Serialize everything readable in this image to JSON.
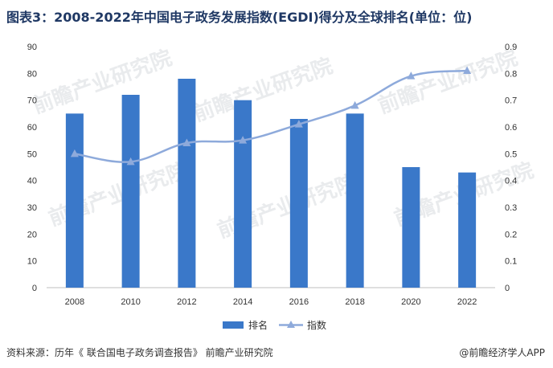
{
  "title": "图表3：2008-2022年中国电子政务发展指数(EGDI)得分及全球排名(单位：位)",
  "footer": {
    "source": "资料来源：历年《 联合国电子政务调查报告》 前瞻产业研究院",
    "brand": "@前瞻经济学人APP"
  },
  "watermark": "前瞻产业研究院",
  "colors": {
    "bar": "#3a78c9",
    "line": "#8eaadb",
    "title": "#1f3864"
  },
  "chart_data": {
    "type": "bar+line",
    "categories": [
      "2008",
      "2010",
      "2012",
      "2014",
      "2016",
      "2018",
      "2020",
      "2022"
    ],
    "series": [
      {
        "name": "排名",
        "type": "bar",
        "axis": "left",
        "values": [
          65,
          72,
          78,
          70,
          63,
          65,
          45,
          43
        ]
      },
      {
        "name": "指数",
        "type": "line",
        "axis": "right",
        "values": [
          0.5,
          0.47,
          0.54,
          0.55,
          0.61,
          0.68,
          0.79,
          0.81
        ]
      }
    ],
    "y_left": {
      "ylim": [
        0,
        90
      ],
      "ticks": [
        "0",
        "10",
        "20",
        "30",
        "40",
        "50",
        "60",
        "70",
        "80",
        "90"
      ]
    },
    "y_right": {
      "ylim": [
        0,
        0.9
      ],
      "ticks": [
        "0",
        "0.1",
        "0.2",
        "0.3",
        "0.4",
        "0.5",
        "0.6",
        "0.7",
        "0.8",
        "0.9"
      ]
    },
    "grid": false,
    "legend_position": "bottom-center"
  }
}
